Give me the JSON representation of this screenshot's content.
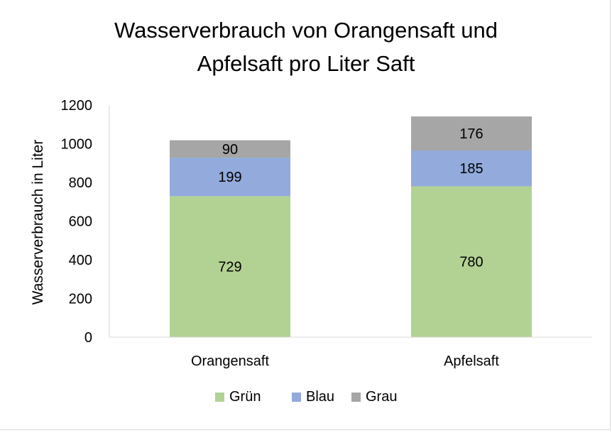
{
  "chart_data": {
    "type": "bar",
    "stacked": true,
    "title_lines": [
      "Wasserverbrauch von Orangensaft und",
      "Apfelsaft pro Liter Saft"
    ],
    "ylabel": "Wasserverbrauch in Liter",
    "ylim": [
      0,
      1200
    ],
    "yticks": [
      "0",
      "200",
      "400",
      "600",
      "800",
      "1000",
      "1200"
    ],
    "categories": [
      "Orangensaft",
      "Apfelsaft"
    ],
    "series": [
      {
        "name": "Grün",
        "values": [
          729,
          780
        ],
        "labels": [
          "729",
          "780"
        ],
        "color": "#b2d293"
      },
      {
        "name": "Blau",
        "values": [
          199,
          185
        ],
        "labels": [
          "199",
          "185"
        ],
        "color": "#92aadc"
      },
      {
        "name": "Grau",
        "values": [
          90,
          176
        ],
        "labels": [
          "90",
          "176"
        ],
        "color": "#a6a6a6"
      }
    ],
    "legend_position": "bottom",
    "grid": false
  }
}
